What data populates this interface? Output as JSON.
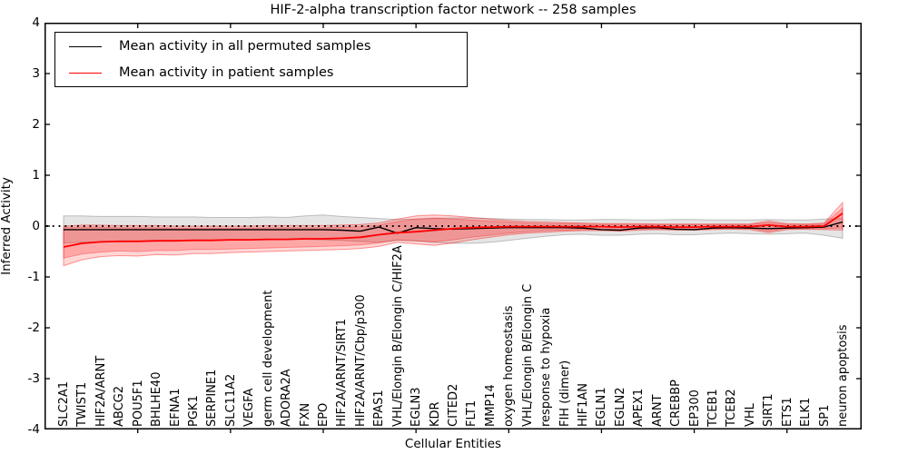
{
  "title": "HIF-2-alpha transcription factor network -- 258 samples",
  "legend": {
    "items": [
      {
        "label": "Mean activity in all permuted samples",
        "color": "#000000"
      },
      {
        "label": "Mean activity in patient samples",
        "color": "#ff0000"
      }
    ]
  },
  "axes": {
    "ylabel": "Inferred Activity",
    "xlabel": "Cellular Entities",
    "ytick_labels": [
      "4",
      "3",
      "2",
      "1",
      "0",
      "-1",
      "-2",
      "-3",
      "-4"
    ],
    "ytick_values": [
      4,
      3,
      2,
      1,
      0,
      -1,
      -2,
      -3,
      -4
    ]
  },
  "chart_data": {
    "type": "line",
    "title": "HIF-2-alpha transcription factor network -- 258 samples",
    "xlabel": "Cellular Entities",
    "ylabel": "Inferred Activity",
    "ylim": [
      -4,
      4
    ],
    "grid": false,
    "legend_position": "upper left",
    "zero_line": {
      "style": "dotted",
      "y": 0,
      "color": "#000000"
    },
    "x_major_tick_indices": [
      4,
      9,
      14,
      19,
      24,
      29,
      34,
      39
    ],
    "categories": [
      "SLC2A1",
      "TWIST1",
      "HIF2A/ARNT",
      "ABCG2",
      "POU5F1",
      "BHLHE40",
      "EFNA1",
      "PGK1",
      "SERPINE1",
      "SLC11A2",
      "VEGFA",
      "germ cell development",
      "ADORA2A",
      "FXN",
      "EPO",
      "HIF2A/ARNT/SIRT1",
      "HIF2A/ARNT/Cbp/p300",
      "EPAS1",
      "VHL/Elongin B/Elongin C/HIF2A",
      "EGLN3",
      "KDR",
      "CITED2",
      "FLT1",
      "MMP14",
      "oxygen homeostasis",
      "VHL/Elongin B/Elongin C",
      "response to hypoxia",
      "FIH (dimer)",
      "HIF1AN",
      "EGLN1",
      "EGLN2",
      "APEX1",
      "ARNT",
      "CREBBP",
      "EP300",
      "TCEB1",
      "TCEB2",
      "VHL",
      "SIRT1",
      "ETS1",
      "ELK1",
      "SP1",
      "neuron apoptosis"
    ],
    "series": [
      {
        "name": "Mean activity in all permuted samples",
        "color": "#000000",
        "width": 1.4,
        "values": [
          -0.07,
          -0.07,
          -0.07,
          -0.07,
          -0.07,
          -0.07,
          -0.07,
          -0.07,
          -0.07,
          -0.07,
          -0.07,
          -0.07,
          -0.07,
          -0.07,
          -0.07,
          -0.08,
          -0.1,
          -0.02,
          -0.14,
          -0.03,
          -0.05,
          -0.06,
          -0.05,
          -0.04,
          -0.03,
          -0.03,
          -0.03,
          -0.03,
          -0.04,
          -0.07,
          -0.08,
          -0.04,
          -0.03,
          -0.06,
          -0.07,
          -0.04,
          -0.03,
          -0.04,
          -0.05,
          -0.04,
          -0.03,
          -0.02,
          0.08
        ]
      },
      {
        "name": "Mean activity in patient samples",
        "color": "#ff0000",
        "width": 1.8,
        "values": [
          -0.41,
          -0.34,
          -0.31,
          -0.3,
          -0.3,
          -0.29,
          -0.29,
          -0.28,
          -0.28,
          -0.27,
          -0.27,
          -0.26,
          -0.26,
          -0.25,
          -0.25,
          -0.24,
          -0.22,
          -0.17,
          -0.13,
          -0.11,
          -0.08,
          -0.05,
          -0.03,
          -0.02,
          -0.01,
          -0.01,
          -0.01,
          -0.01,
          -0.01,
          -0.01,
          -0.02,
          -0.01,
          -0.01,
          -0.02,
          -0.02,
          -0.01,
          -0.01,
          -0.01,
          0.02,
          -0.01,
          -0.01,
          0.0,
          0.25
        ]
      }
    ],
    "bands": [
      {
        "name": "permuted-samples-range",
        "fill": "rgba(0,0,0,0.10)",
        "edge": "rgba(0,0,0,0.22)",
        "upper": [
          0.2,
          0.2,
          0.19,
          0.19,
          0.19,
          0.18,
          0.18,
          0.18,
          0.17,
          0.17,
          0.17,
          0.18,
          0.17,
          0.2,
          0.22,
          0.19,
          0.17,
          0.15,
          0.13,
          0.14,
          0.15,
          0.16,
          0.16,
          0.15,
          0.14,
          0.13,
          0.13,
          0.12,
          0.12,
          0.13,
          0.13,
          0.12,
          0.12,
          0.13,
          0.13,
          0.12,
          0.12,
          0.12,
          0.13,
          0.12,
          0.12,
          0.14,
          0.15
        ],
        "lower": [
          -0.33,
          -0.32,
          -0.31,
          -0.3,
          -0.3,
          -0.29,
          -0.29,
          -0.28,
          -0.28,
          -0.27,
          -0.27,
          -0.27,
          -0.26,
          -0.26,
          -0.27,
          -0.28,
          -0.3,
          -0.32,
          -0.28,
          -0.29,
          -0.32,
          -0.34,
          -0.34,
          -0.32,
          -0.28,
          -0.24,
          -0.2,
          -0.17,
          -0.16,
          -0.18,
          -0.18,
          -0.16,
          -0.15,
          -0.17,
          -0.17,
          -0.15,
          -0.14,
          -0.15,
          -0.16,
          -0.15,
          -0.14,
          -0.18,
          -0.24
        ]
      },
      {
        "name": "patient-samples-range-outer",
        "fill": "rgba(255,0,0,0.16)",
        "edge": "rgba(255,0,0,0.40)",
        "upper": [
          0.0,
          0.02,
          0.02,
          0.01,
          0.01,
          0.01,
          0.0,
          0.0,
          0.0,
          0.0,
          0.0,
          0.01,
          0.01,
          0.01,
          0.01,
          0.02,
          0.03,
          0.06,
          0.14,
          0.2,
          0.22,
          0.2,
          0.17,
          0.14,
          0.11,
          0.09,
          0.08,
          0.07,
          0.06,
          0.05,
          0.05,
          0.05,
          0.04,
          0.04,
          0.04,
          0.04,
          0.04,
          0.04,
          0.1,
          0.05,
          0.04,
          0.06,
          0.46
        ],
        "lower": [
          -0.78,
          -0.66,
          -0.6,
          -0.58,
          -0.59,
          -0.56,
          -0.57,
          -0.54,
          -0.54,
          -0.52,
          -0.51,
          -0.5,
          -0.49,
          -0.48,
          -0.47,
          -0.46,
          -0.44,
          -0.4,
          -0.32,
          -0.35,
          -0.38,
          -0.33,
          -0.27,
          -0.22,
          -0.17,
          -0.14,
          -0.12,
          -0.1,
          -0.09,
          -0.09,
          -0.1,
          -0.08,
          -0.07,
          -0.08,
          -0.08,
          -0.07,
          -0.06,
          -0.07,
          -0.13,
          -0.07,
          -0.06,
          -0.07,
          -0.08
        ]
      },
      {
        "name": "patient-samples-range-inner",
        "fill": "rgba(255,0,0,0.22)",
        "edge": "rgba(255,0,0,0.30)",
        "upper": [
          -0.03,
          -0.02,
          -0.02,
          -0.03,
          -0.03,
          -0.03,
          -0.04,
          -0.04,
          -0.04,
          -0.04,
          -0.04,
          -0.03,
          -0.03,
          -0.03,
          -0.03,
          -0.02,
          -0.01,
          0.02,
          0.09,
          0.14,
          0.16,
          0.14,
          0.12,
          0.1,
          0.08,
          0.06,
          0.05,
          0.05,
          0.04,
          0.03,
          0.03,
          0.03,
          0.03,
          0.03,
          0.03,
          0.03,
          0.03,
          0.03,
          0.07,
          0.03,
          0.03,
          0.04,
          0.36
        ],
        "lower": [
          -0.63,
          -0.55,
          -0.51,
          -0.49,
          -0.5,
          -0.48,
          -0.48,
          -0.46,
          -0.46,
          -0.45,
          -0.44,
          -0.43,
          -0.42,
          -0.41,
          -0.4,
          -0.39,
          -0.37,
          -0.33,
          -0.27,
          -0.29,
          -0.31,
          -0.27,
          -0.22,
          -0.18,
          -0.14,
          -0.11,
          -0.09,
          -0.08,
          -0.07,
          -0.07,
          -0.08,
          -0.06,
          -0.06,
          -0.06,
          -0.06,
          -0.05,
          -0.05,
          -0.05,
          -0.1,
          -0.05,
          -0.05,
          -0.05,
          -0.04
        ]
      }
    ]
  }
}
